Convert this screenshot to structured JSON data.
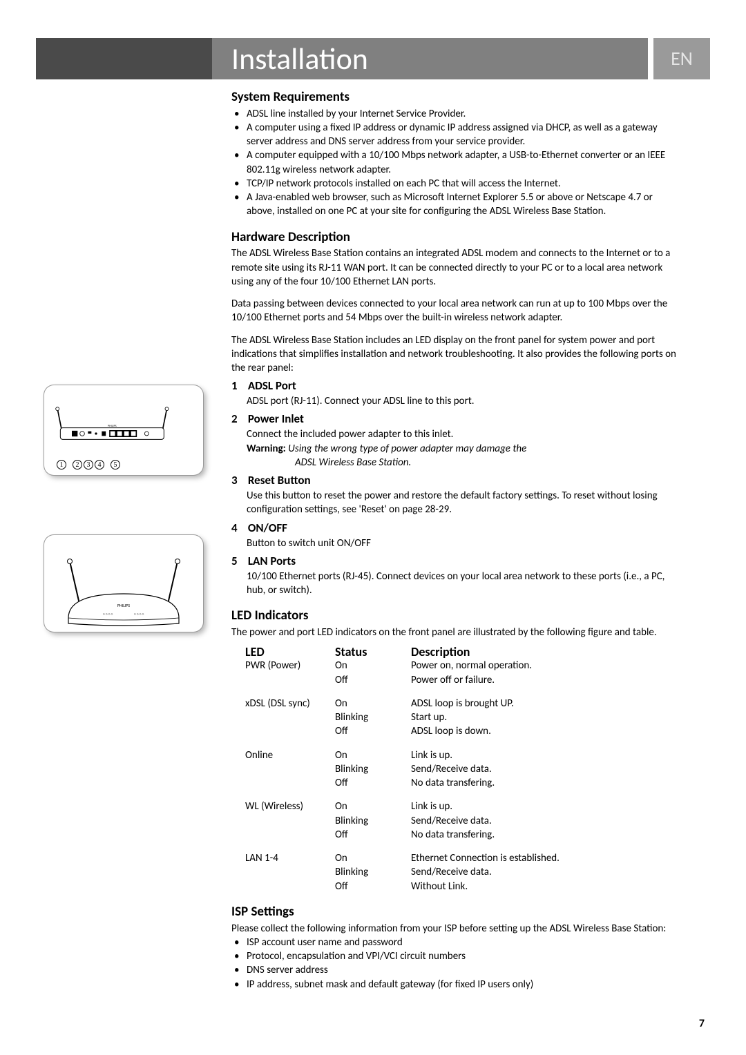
{
  "header": {
    "title": "Installation",
    "lang": "EN"
  },
  "page_number": "7",
  "callouts": [
    "1",
    "2",
    "3",
    "4",
    "5"
  ],
  "sections": {
    "sysreq": {
      "title": "System Requirements",
      "items": [
        "ADSL line installed by your Internet Service Provider.",
        "A computer using a fixed IP address or dynamic IP address assigned via DHCP, as well as a gateway server address and DNS server address from your service provider.",
        "A computer equipped with a 10/100 Mbps network adapter, a USB-to-Ethernet converter or an IEEE 802.11g wireless network adapter.",
        "TCP/IP network protocols installed on each PC that will access the Internet.",
        "A Java-enabled web browser, such as Microsoft Internet Explorer 5.5 or above or Netscape 4.7 or above, installed on one PC at your site for configuring the ADSL Wireless Base Station."
      ]
    },
    "hardware": {
      "title": "Hardware Description",
      "p1": "The ADSL Wireless Base Station contains an integrated ADSL modem and connects to the Internet or to a remote site using its RJ-11 WAN port. It can be connected directly to your PC or to a local area network using any of the four 10/100 Ethernet LAN ports.",
      "p2": "Data passing between devices connected to your local area network can run at up to 100 Mbps over the 10/100 Ethernet ports and 54 Mbps over the built-in wireless network adapter.",
      "p3": "The ADSL Wireless Base Station includes an LED display on the front panel for system power and port indications that simplifies installation and network troubleshooting. It also provides the following ports on the rear panel:"
    },
    "ports": {
      "p1_title": "ADSL Port",
      "p1_desc": "ADSL port (RJ-11). Connect your ADSL line to this port.",
      "p2_title": "Power Inlet",
      "p2_desc": "Connect the included power adapter to this inlet.",
      "p2_warn_label": "Warning:",
      "p2_warn1": "Using the wrong type of power adapter may damage the",
      "p2_warn2": "ADSL Wireless Base Station.",
      "p3_title": "Reset Button",
      "p3_desc": "Use this button to reset the power and restore the default factory settings. To reset without losing configuration settings, see 'Reset' on page 28-29.",
      "p4_title": "ON/OFF",
      "p4_desc": "Button to switch unit ON/OFF",
      "p5_title": "LAN Ports",
      "p5_desc": "10/100 Ethernet ports (RJ-45). Connect devices on your local area network to these ports (i.e., a PC, hub, or switch)."
    },
    "led": {
      "title": "LED Indicators",
      "intro": "The power and port LED indicators on the front panel are illustrated by the following figure and table.",
      "hdr_led": "LED",
      "hdr_status": "Status",
      "hdr_desc": "Description",
      "rows": [
        {
          "led": "PWR (Power)",
          "statuses": [
            "On",
            "Off"
          ],
          "descs": [
            "Power on, normal operation.",
            "Power off or failure."
          ]
        },
        {
          "led": "xDSL (DSL sync)",
          "statuses": [
            "On",
            "Blinking",
            "Off"
          ],
          "descs": [
            "ADSL loop is brought UP.",
            "Start up.",
            "ADSL loop is down."
          ]
        },
        {
          "led": "Online",
          "statuses": [
            "On",
            "Blinking",
            "Off"
          ],
          "descs": [
            "Link is up.",
            "Send/Receive data.",
            "No data transfering."
          ]
        },
        {
          "led": "WL (Wireless)",
          "statuses": [
            "On",
            "Blinking",
            "Off"
          ],
          "descs": [
            "Link is up.",
            "Send/Receive data.",
            "No data transfering."
          ]
        },
        {
          "led": "LAN 1-4",
          "statuses": [
            "On",
            "Blinking",
            "Off"
          ],
          "descs": [
            "Ethernet Connection is established.",
            "Send/Receive data.",
            "Without Link."
          ]
        }
      ]
    },
    "isp": {
      "title": "ISP Settings",
      "intro": "Please collect the following information from your ISP before setting up the ADSL Wireless Base Station:",
      "items": [
        "ISP account user name and password",
        "Protocol, encapsulation and VPI/VCI circuit numbers",
        "DNS server address",
        "IP address, subnet mask and default gateway (for fixed IP users only)"
      ]
    }
  }
}
